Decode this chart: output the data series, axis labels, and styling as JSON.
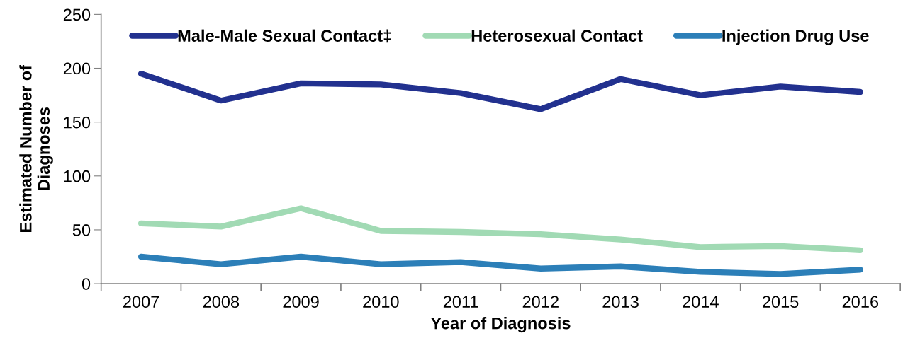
{
  "chart_data": {
    "type": "line",
    "xlabel": "Year of Diagnosis",
    "ylabel": "Estimated Number of\nDiagnoses",
    "categories": [
      "2007",
      "2008",
      "2009",
      "2010",
      "2011",
      "2012",
      "2013",
      "2014",
      "2015",
      "2016"
    ],
    "series": [
      {
        "name": "Male-Male Sexual Contact‡",
        "color": "#22318f",
        "values": [
          195,
          170,
          186,
          185,
          177,
          162,
          190,
          175,
          183,
          178
        ]
      },
      {
        "name": "Heterosexual Contact",
        "color": "#a1dab4",
        "values": [
          56,
          53,
          70,
          49,
          48,
          46,
          41,
          34,
          35,
          31
        ]
      },
      {
        "name": "Injection Drug Use",
        "color": "#2c7fb8",
        "values": [
          25,
          18,
          25,
          18,
          20,
          14,
          16,
          11,
          9,
          13
        ]
      }
    ],
    "ylim": [
      0,
      250
    ],
    "yticks": [
      0,
      50,
      100,
      150,
      200,
      250
    ],
    "grid": false,
    "legend": "top",
    "marker": "none",
    "line_style": "solid"
  }
}
